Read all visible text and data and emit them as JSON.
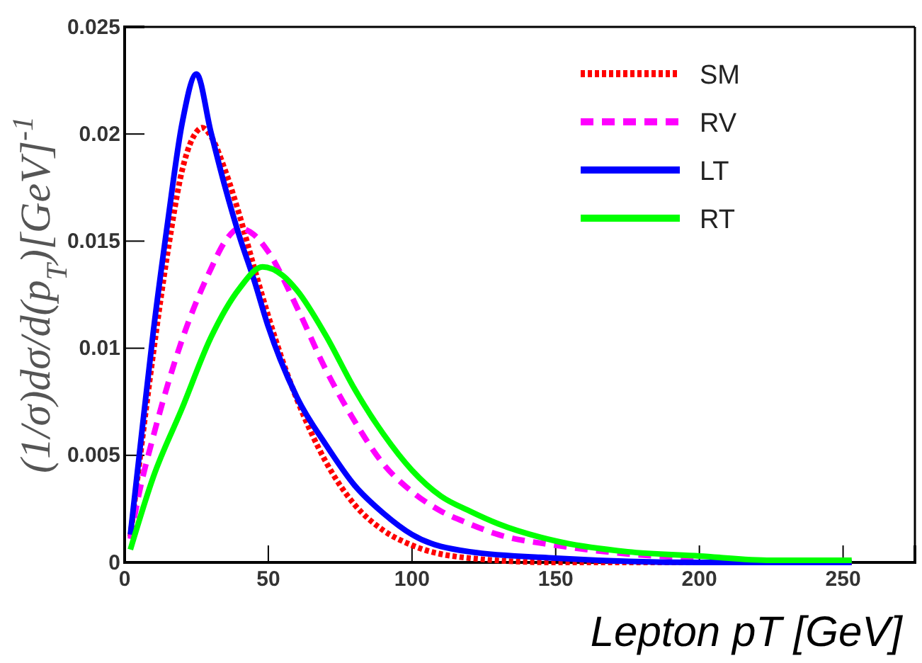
{
  "chart_data": {
    "type": "line",
    "xlabel": "Lepton pT [GeV]",
    "ylabel": "(1/σ)dσ/d(p$_{T}$)[GeV]$^{-1}$",
    "xlim": [
      0,
      275
    ],
    "ylim": [
      0,
      0.025
    ],
    "xticks": [
      0,
      50,
      100,
      150,
      200,
      250
    ],
    "yticks": [
      0,
      {
        "value": 0.005,
        "label": "0.005"
      },
      {
        "value": 0.01,
        "label": "0.01"
      },
      {
        "value": 0.015,
        "label": "0.015"
      },
      {
        "value": 0.02,
        "label": "0.02"
      },
      {
        "value": 0.025,
        "label": "0.025"
      }
    ],
    "grid": false,
    "legend": "top right",
    "marker": "none",
    "series": [
      {
        "name": "SM",
        "color": "#ff0000",
        "line_style": "dotted",
        "x": [
          2,
          5,
          10,
          15,
          20,
          25,
          27,
          30,
          35,
          40,
          45,
          50,
          55,
          60,
          70,
          80,
          90,
          100,
          120,
          150,
          200,
          253
        ],
        "values": [
          0.0012,
          0.0045,
          0.0098,
          0.0145,
          0.0183,
          0.0201,
          0.0203,
          0.0199,
          0.0183,
          0.0162,
          0.0138,
          0.0115,
          0.0094,
          0.0076,
          0.0047,
          0.0027,
          0.0015,
          0.0008,
          0.0002,
          0,
          0,
          0
        ]
      },
      {
        "name": "RV",
        "color": "#ff00ff",
        "line_style": "dashed",
        "x": [
          2,
          5,
          10,
          20,
          30,
          35,
          40,
          45,
          50,
          60,
          70,
          80,
          90,
          100,
          110,
          120,
          130,
          150,
          175,
          200
        ],
        "values": [
          0.0011,
          0.0032,
          0.0059,
          0.0104,
          0.0137,
          0.015,
          0.0156,
          0.0153,
          0.0145,
          0.0119,
          0.009,
          0.0066,
          0.0046,
          0.0033,
          0.0024,
          0.0018,
          0.0013,
          0.0008,
          0.0004,
          0.0002
        ]
      },
      {
        "name": "LT",
        "color": "#0000ff",
        "line_style": "solid",
        "x": [
          2,
          5,
          10,
          15,
          20,
          25,
          30,
          35,
          40,
          45,
          50,
          60,
          70,
          80,
          90,
          100,
          120,
          150,
          200,
          253
        ],
        "values": [
          0.0013,
          0.0049,
          0.0108,
          0.0159,
          0.0205,
          0.0228,
          0.0201,
          0.0175,
          0.0152,
          0.0132,
          0.011,
          0.0077,
          0.0055,
          0.0036,
          0.0023,
          0.0013,
          0.0005,
          0.0002,
          0,
          0
        ]
      },
      {
        "name": "RT",
        "color": "#00ff00",
        "line_style": "solid",
        "x": [
          2,
          10,
          20,
          30,
          40,
          48,
          55,
          60,
          70,
          80,
          90,
          100,
          110,
          120,
          130,
          150,
          175,
          200,
          225,
          253
        ],
        "values": [
          0.0006,
          0.004,
          0.0072,
          0.0105,
          0.0128,
          0.0138,
          0.0134,
          0.0127,
          0.0106,
          0.0081,
          0.006,
          0.0043,
          0.0031,
          0.0024,
          0.0018,
          0.001,
          0.0005,
          0.0003,
          0.0001,
          0.0001
        ]
      }
    ]
  }
}
